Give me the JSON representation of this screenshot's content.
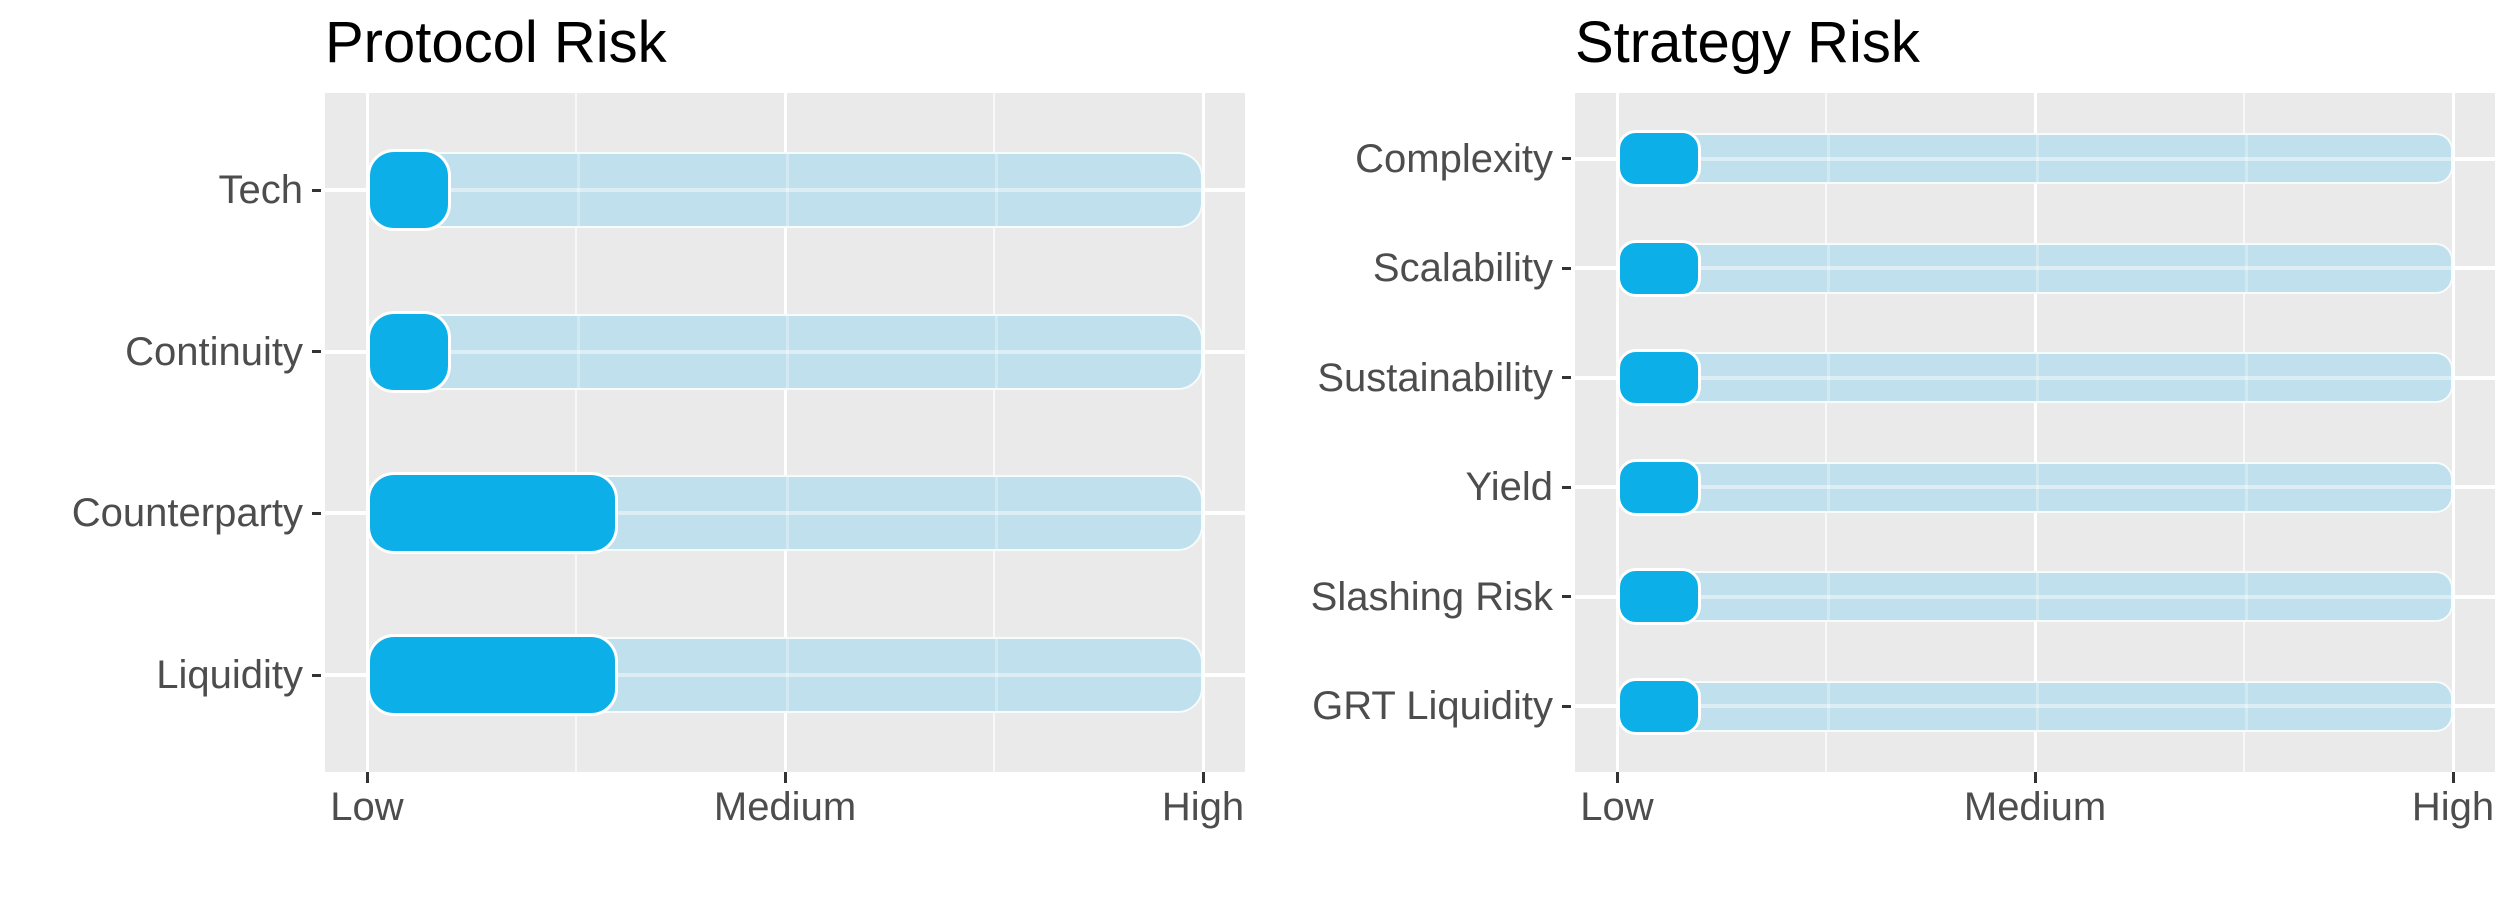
{
  "figure": {
    "background": "#FFFFFF"
  },
  "theme": {
    "accent_fill": "#0CAFE8",
    "track_fill": "#BFE0EC",
    "panel_bg": "#EAEAEA",
    "grid_major": "#FFFFFF",
    "axis_text_color": "#4D4D4D",
    "tick_color": "#333333",
    "title_color": "#000000"
  },
  "chart_data": [
    {
      "type": "bar",
      "orientation": "horizontal",
      "title": "Protocol Risk",
      "categories": [
        "Tech",
        "Continuity",
        "Counterparty",
        "Liquidity"
      ],
      "values": [
        1.2,
        1.2,
        1.6,
        1.6
      ],
      "track_range": [
        1,
        3
      ],
      "scale": {
        "Low": 1,
        "Medium": 2,
        "High": 3
      },
      "x_ticks": [
        {
          "label": "Low",
          "value": 1
        },
        {
          "label": "Medium",
          "value": 2
        },
        {
          "label": "High",
          "value": 3
        }
      ],
      "minor_grid_values": [
        1.5,
        2.5
      ],
      "xlim": [
        0.9,
        3.1
      ],
      "grid": true,
      "legend": false
    },
    {
      "type": "bar",
      "orientation": "horizontal",
      "title": "Strategy Risk",
      "categories": [
        "Complexity",
        "Scalability",
        "Sustainability",
        "Yield",
        "Slashing Risk",
        "GRT Liquidity"
      ],
      "values": [
        1.2,
        1.2,
        1.2,
        1.2,
        1.2,
        1.2
      ],
      "track_range": [
        1,
        3
      ],
      "scale": {
        "Low": 1,
        "Medium": 2,
        "High": 3
      },
      "x_ticks": [
        {
          "label": "Low",
          "value": 1
        },
        {
          "label": "Medium",
          "value": 2
        },
        {
          "label": "High",
          "value": 3
        }
      ],
      "minor_grid_values": [
        1.5,
        2.5
      ],
      "xlim": [
        0.9,
        3.1
      ],
      "grid": true,
      "legend": false
    }
  ]
}
